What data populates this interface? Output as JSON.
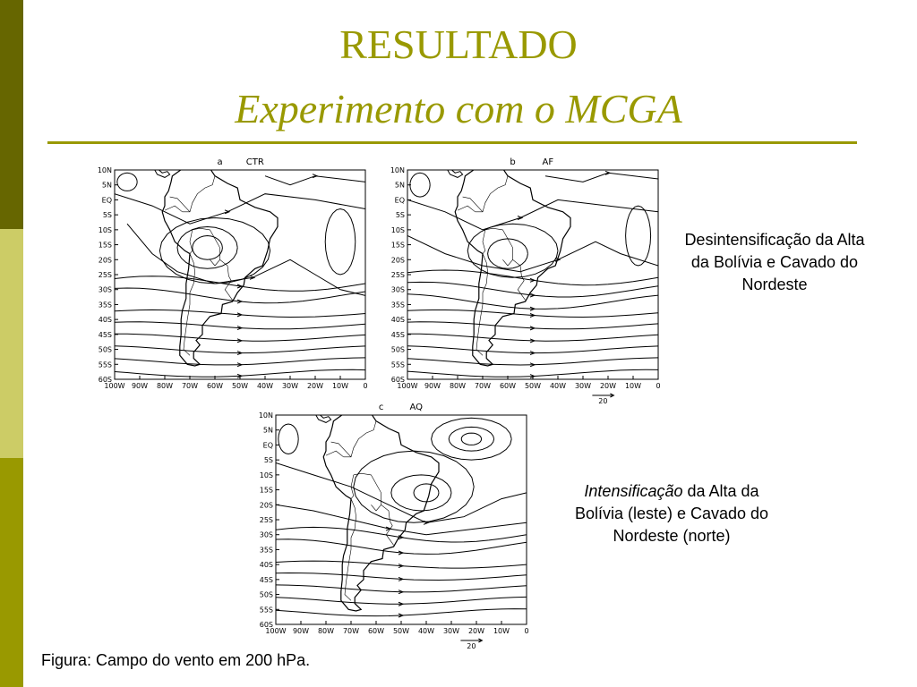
{
  "title": {
    "line1": "RESULTADO",
    "line2": "Experimento com o MCGA"
  },
  "notes": {
    "desint": "Desintensificação da Alta da Bolívia e Cavado do Nordeste",
    "intens_italic": "Intensificação",
    "intens_rest": " da Alta da Bolívia (leste) e Cavado do Nordeste (norte)"
  },
  "caption": "Figura: Campo do vento em 200 hPa.",
  "panels": [
    {
      "letter": "a",
      "name": "CTR"
    },
    {
      "letter": "b",
      "name": "AF"
    },
    {
      "letter": "c",
      "name": "AQ"
    }
  ],
  "lat_labels": [
    "10N",
    "5N",
    "EQ",
    "5S",
    "10S",
    "15S",
    "20S",
    "25S",
    "30S",
    "35S",
    "40S",
    "45S",
    "50S",
    "55S",
    "60S"
  ],
  "lon_labels": [
    "100W",
    "90W",
    "80W",
    "70W",
    "60W",
    "50W",
    "40W",
    "30W",
    "20W",
    "10W",
    "0"
  ],
  "vector_scale": "20",
  "colors": {
    "accent": "#999900",
    "dark_bar": "#666600",
    "light_bar": "#cccc66"
  }
}
